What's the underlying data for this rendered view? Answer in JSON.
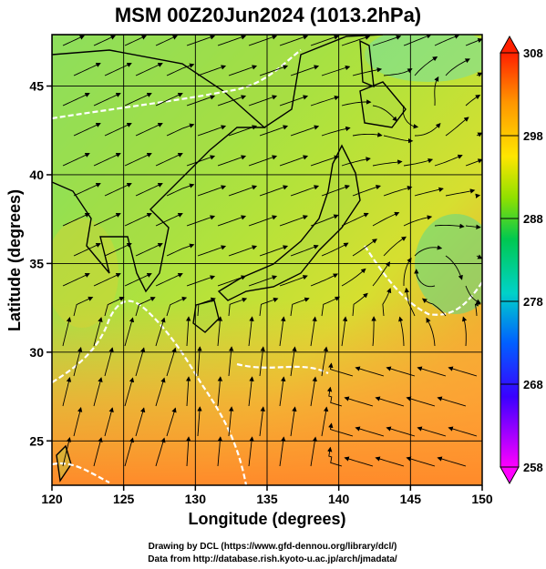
{
  "title": "MSM 00Z20Jun2024 (1013.2hPa)",
  "xlabel": "Longitude (degrees)",
  "ylabel": "Latitude  (degrees)",
  "x_ticks": [
    "120",
    "125",
    "130",
    "135",
    "140",
    "145",
    "150"
  ],
  "y_ticks": [
    "25",
    "30",
    "35",
    "40",
    "45"
  ],
  "colorbar": {
    "ticks": [
      "308",
      "298",
      "288",
      "278",
      "268",
      "258"
    ],
    "min": 258,
    "max": 308,
    "colors": [
      "#ff00ff",
      "#0000ff",
      "#00a0ff",
      "#00d2c0",
      "#00c800",
      "#c8e600",
      "#ffe600",
      "#ff9600",
      "#ff2800"
    ]
  },
  "credits": {
    "line1": "Drawing by DCL (https://www.gfd-dennou.org/library/dcl/)",
    "line2": "Data from http://database.rish.kyoto-u.ac.jp/arch/jmadata/"
  },
  "map": {
    "lon_range": [
      120,
      150
    ],
    "lat_range": [
      22.5,
      47.9
    ],
    "field": "surface air temperature (K) with wind streamlines",
    "white_contour": "290 K isotherm"
  }
}
